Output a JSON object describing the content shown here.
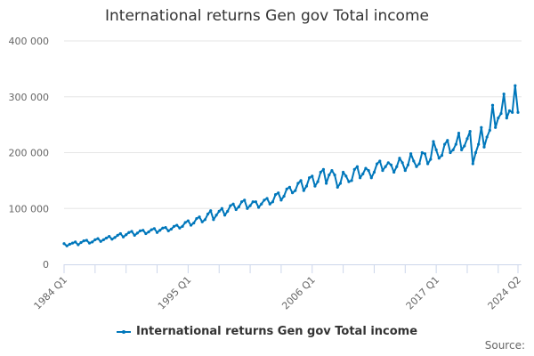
{
  "chart_data": {
    "type": "line",
    "title": "International returns Gen gov Total income",
    "xlabel": "",
    "ylabel": "",
    "ylim": [
      0,
      400000
    ],
    "yticks": [
      0,
      100000,
      200000,
      300000,
      400000
    ],
    "ytick_labels": [
      "0",
      "100 000",
      "200 000",
      "300 000",
      "400 000"
    ],
    "x_start": "1984 Q1",
    "x_end": "2024 Q2",
    "xtick_labels": [
      {
        "label": "1984 Q1",
        "index": 0
      },
      {
        "label": "1995 Q1",
        "index": 44
      },
      {
        "label": "2006 Q1",
        "index": 88
      },
      {
        "label": "2017 Q1",
        "index": 132
      },
      {
        "label": "2024 Q2",
        "index": 161
      }
    ],
    "grid": true,
    "legend_position": "bottom",
    "series": [
      {
        "name": "International returns Gen gov Total income",
        "color": "#0077bb",
        "values": [
          37000,
          33000,
          36000,
          38000,
          40000,
          35000,
          39000,
          42000,
          43000,
          38000,
          40000,
          44000,
          46000,
          41000,
          44000,
          47000,
          50000,
          45000,
          48000,
          52000,
          55000,
          49000,
          53000,
          57000,
          59000,
          52000,
          56000,
          60000,
          61000,
          55000,
          58000,
          62000,
          64000,
          57000,
          61000,
          65000,
          66000,
          60000,
          63000,
          68000,
          70000,
          65000,
          68000,
          75000,
          78000,
          70000,
          74000,
          82000,
          85000,
          76000,
          80000,
          90000,
          96000,
          80000,
          88000,
          95000,
          100000,
          88000,
          95000,
          105000,
          108000,
          98000,
          103000,
          112000,
          115000,
          100000,
          105000,
          112000,
          112000,
          102000,
          108000,
          115000,
          118000,
          108000,
          112000,
          125000,
          128000,
          115000,
          122000,
          135000,
          138000,
          128000,
          132000,
          145000,
          150000,
          132000,
          140000,
          155000,
          158000,
          140000,
          148000,
          165000,
          170000,
          145000,
          160000,
          168000,
          160000,
          138000,
          145000,
          165000,
          158000,
          148000,
          150000,
          170000,
          175000,
          155000,
          162000,
          172000,
          168000,
          155000,
          165000,
          180000,
          185000,
          168000,
          175000,
          182000,
          178000,
          165000,
          175000,
          190000,
          182000,
          168000,
          178000,
          198000,
          185000,
          175000,
          180000,
          200000,
          198000,
          180000,
          188000,
          220000,
          205000,
          190000,
          195000,
          215000,
          222000,
          200000,
          205000,
          215000,
          235000,
          205000,
          212000,
          225000,
          238000,
          180000,
          200000,
          215000,
          245000,
          210000,
          228000,
          240000,
          285000,
          245000,
          262000,
          270000,
          305000,
          262000,
          275000,
          272000,
          320000,
          272000
        ]
      }
    ]
  },
  "source_label": "Source:"
}
